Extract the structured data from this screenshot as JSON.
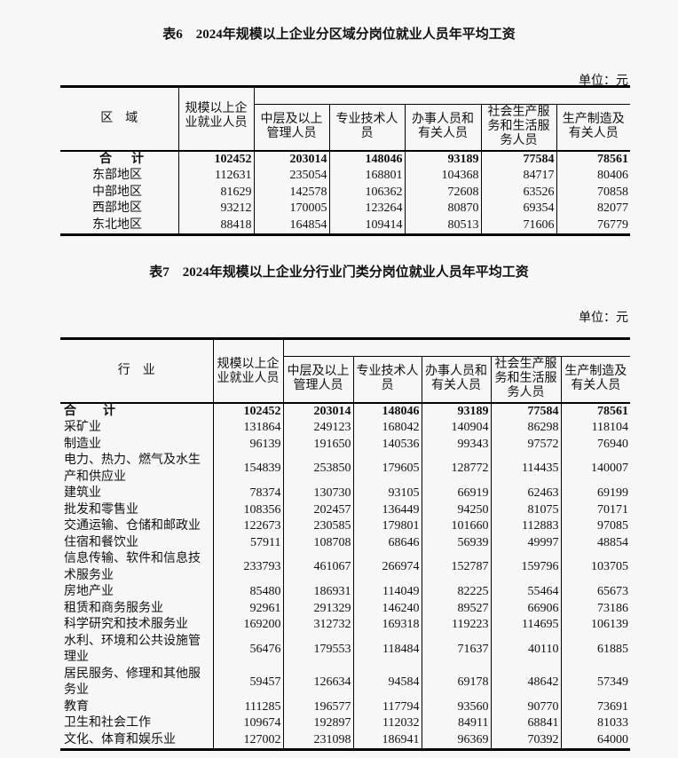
{
  "table6": {
    "title": "表6　2024年规模以上企业分区域分岗位就业人员年平均工资",
    "unit": "单位：元",
    "headers": [
      "区　域",
      "规模以上企业就业人员",
      "中层及以上管理人员",
      "专业技术人员",
      "办事人员和有关人员",
      "社会生产服务和生活服务人员",
      "生产制造及有关人员"
    ],
    "rows": [
      {
        "label": "合　计",
        "values": [
          "102452",
          "203014",
          "148046",
          "93189",
          "77584",
          "78561"
        ]
      },
      {
        "label": "东部地区",
        "values": [
          "112631",
          "235054",
          "168801",
          "104368",
          "84717",
          "80406"
        ]
      },
      {
        "label": "中部地区",
        "values": [
          "81629",
          "142578",
          "106362",
          "72608",
          "63526",
          "70858"
        ]
      },
      {
        "label": "西部地区",
        "values": [
          "93212",
          "170005",
          "123264",
          "80870",
          "69354",
          "82077"
        ]
      },
      {
        "label": "东北地区",
        "values": [
          "88418",
          "164854",
          "109414",
          "80513",
          "71606",
          "76779"
        ]
      }
    ]
  },
  "table7": {
    "title": "表7　2024年规模以上企业分行业门类分岗位就业人员年平均工资",
    "unit": "单位：元",
    "headers": [
      "行　业",
      "规模以上企业就业人员",
      "中层及以上管理人员",
      "专业技术人员",
      "办事人员和有关人员",
      "社会生产服务和生活服务人员",
      "生产制造及有关人员"
    ],
    "rows": [
      {
        "label": "合　计",
        "values": [
          "102452",
          "203014",
          "148046",
          "93189",
          "77584",
          "78561"
        ]
      },
      {
        "label": "采矿业",
        "values": [
          "131864",
          "249123",
          "168042",
          "140904",
          "86298",
          "118104"
        ]
      },
      {
        "label": "制造业",
        "values": [
          "96139",
          "191650",
          "140536",
          "99343",
          "97572",
          "76940"
        ]
      },
      {
        "label": "电力、热力、燃气及水生产和供应业",
        "values": [
          "154839",
          "253850",
          "179605",
          "128772",
          "114435",
          "140007"
        ]
      },
      {
        "label": "建筑业",
        "values": [
          "78374",
          "130730",
          "93105",
          "66919",
          "62463",
          "69199"
        ]
      },
      {
        "label": "批发和零售业",
        "values": [
          "108356",
          "202457",
          "136449",
          "94250",
          "81075",
          "70171"
        ]
      },
      {
        "label": "交通运输、仓储和邮政业",
        "values": [
          "122673",
          "230585",
          "179801",
          "101660",
          "112883",
          "97085"
        ]
      },
      {
        "label": "住宿和餐饮业",
        "values": [
          "57911",
          "108708",
          "68646",
          "56939",
          "49997",
          "48854"
        ]
      },
      {
        "label": "信息传输、软件和信息技术服务业",
        "values": [
          "233793",
          "461067",
          "266974",
          "152787",
          "159796",
          "103705"
        ]
      },
      {
        "label": "房地产业",
        "values": [
          "85480",
          "186931",
          "114049",
          "82225",
          "55464",
          "65673"
        ]
      },
      {
        "label": "租赁和商务服务业",
        "values": [
          "92961",
          "291329",
          "146240",
          "89527",
          "66906",
          "73186"
        ]
      },
      {
        "label": "科学研究和技术服务业",
        "values": [
          "169200",
          "312732",
          "169318",
          "119223",
          "114695",
          "106139"
        ]
      },
      {
        "label": "水利、环境和公共设施管理业",
        "values": [
          "56476",
          "179553",
          "118484",
          "71637",
          "40110",
          "61885"
        ]
      },
      {
        "label": "居民服务、修理和其他服务业",
        "values": [
          "59457",
          "126634",
          "94584",
          "69178",
          "48642",
          "57349"
        ]
      },
      {
        "label": "教育",
        "values": [
          "111285",
          "196577",
          "117794",
          "93560",
          "90770",
          "73691"
        ]
      },
      {
        "label": "卫生和社会工作",
        "values": [
          "109674",
          "192897",
          "112032",
          "84911",
          "68841",
          "81033"
        ]
      },
      {
        "label": "文化、体育和娱乐业",
        "values": [
          "127002",
          "231098",
          "186941",
          "96369",
          "70392",
          "64000"
        ]
      }
    ]
  }
}
